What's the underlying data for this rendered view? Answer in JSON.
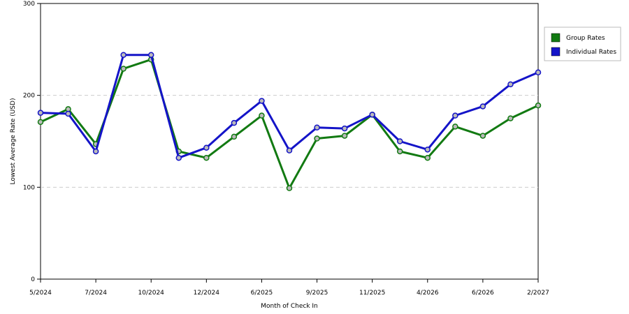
{
  "chart_data": {
    "type": "line",
    "x_label": "Month of Check In",
    "y_label": "Lowest Average Rate (USD)",
    "categories": [
      "5/2024",
      null,
      "7/2024",
      null,
      "10/2024",
      null,
      "12/2024",
      null,
      "6/2025",
      null,
      "9/2025",
      null,
      "11/2025",
      null,
      "4/2026",
      null,
      "6/2026",
      null,
      "2/2027"
    ],
    "series": [
      {
        "name": "Group Rates",
        "color": "#127a12",
        "values": [
          171,
          185,
          147,
          229,
          239,
          139,
          132,
          155,
          178,
          99,
          153,
          156,
          179,
          139,
          132,
          166,
          156,
          175,
          189
        ]
      },
      {
        "name": "Individual Rates",
        "color": "#1414c8",
        "values": [
          181,
          180,
          139,
          244,
          244,
          132,
          143,
          170,
          194,
          140,
          165,
          164,
          179,
          150,
          141,
          178,
          188,
          212,
          225
        ]
      }
    ],
    "ylim": [
      0,
      300
    ],
    "yticks": [
      0,
      100,
      200,
      300
    ],
    "grid": true,
    "legend": "right"
  }
}
